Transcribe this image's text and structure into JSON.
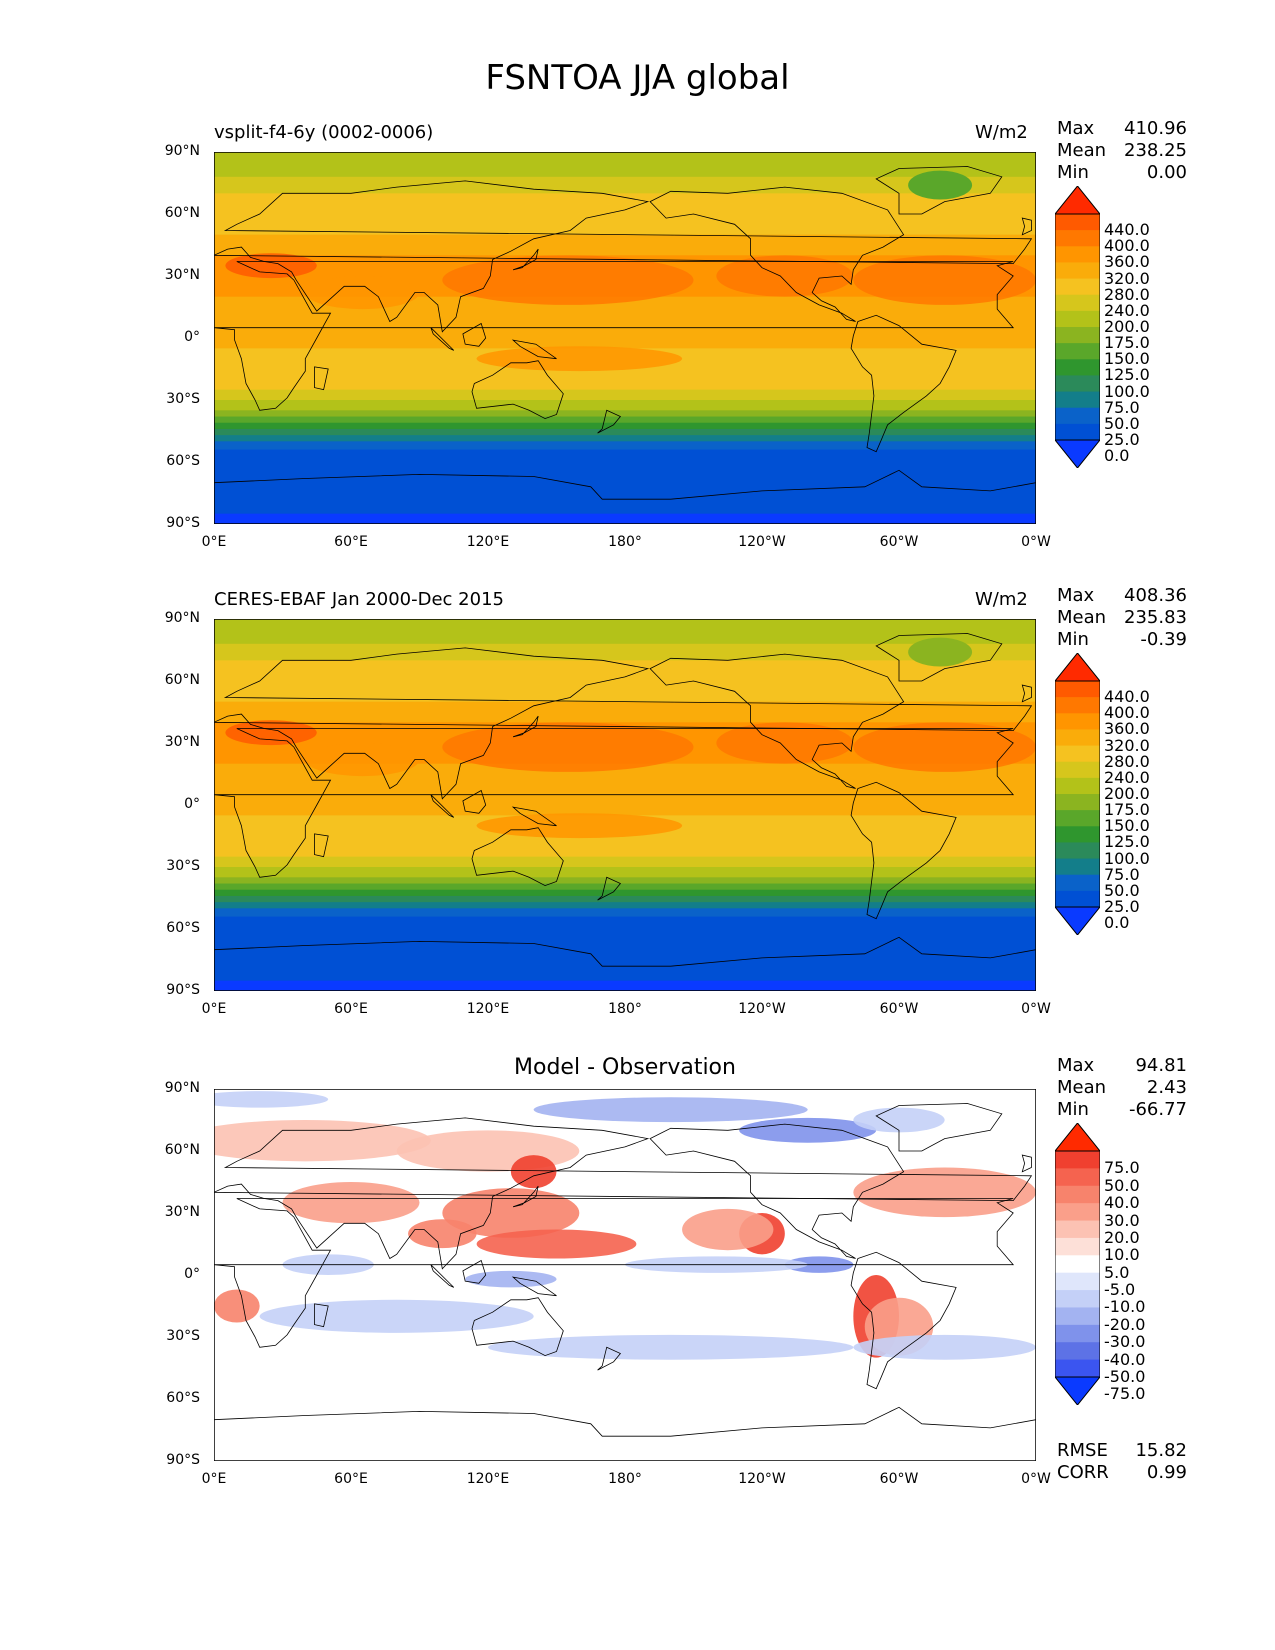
{
  "figure": {
    "title": "FSNTOA JJA global"
  },
  "chart_data": [
    {
      "type": "heatmap",
      "name": "test",
      "left_title": "vsplit-f4-6y (0002-0006)",
      "units": "W/m2",
      "stats": [
        {
          "label": "Max",
          "value": "410.96"
        },
        {
          "label": "Mean",
          "value": "238.25"
        },
        {
          "label": "Min",
          "value": "0.00"
        }
      ],
      "colorbar_levels": [
        "440.0",
        "400.0",
        "360.0",
        "320.0",
        "280.0",
        "240.0",
        "200.0",
        "175.0",
        "150.0",
        "125.0",
        "100.0",
        "75.0",
        "50.0",
        "25.0",
        "0.0"
      ],
      "colorbar_colors": [
        "#ff2a00",
        "#ff5a00",
        "#ff7800",
        "#ff9500",
        "#faac0a",
        "#f5c220",
        "#d6c61c",
        "#b3c219",
        "#8bb420",
        "#5aa72a",
        "#2f962e",
        "#2b8a5a",
        "#137e8a",
        "#0a62c9",
        "#0050d4",
        "#0a3aff"
      ],
      "xticks": [
        "0°E",
        "60°E",
        "120°E",
        "180°",
        "120°W",
        "60°W",
        "0°W"
      ],
      "yticks": [
        "90°N",
        "60°N",
        "30°N",
        "0°",
        "30°S",
        "60°S",
        "90°S"
      ],
      "xlim": [
        0,
        360
      ],
      "ylim": [
        -90,
        90
      ]
    },
    {
      "type": "heatmap",
      "name": "reference",
      "left_title": "CERES-EBAF Jan 2000-Dec 2015",
      "units": "W/m2",
      "stats": [
        {
          "label": "Max",
          "value": "408.36"
        },
        {
          "label": "Mean",
          "value": "235.83"
        },
        {
          "label": "Min",
          "value": "-0.39"
        }
      ],
      "colorbar_levels": [
        "440.0",
        "400.0",
        "360.0",
        "320.0",
        "280.0",
        "240.0",
        "200.0",
        "175.0",
        "150.0",
        "125.0",
        "100.0",
        "75.0",
        "50.0",
        "25.0",
        "0.0"
      ],
      "colorbar_colors": [
        "#ff2a00",
        "#ff5a00",
        "#ff7800",
        "#ff9500",
        "#faac0a",
        "#f5c220",
        "#d6c61c",
        "#b3c219",
        "#8bb420",
        "#5aa72a",
        "#2f962e",
        "#2b8a5a",
        "#137e8a",
        "#0a62c9",
        "#0050d4",
        "#0a3aff"
      ],
      "xticks": [
        "0°E",
        "60°E",
        "120°E",
        "180°",
        "120°W",
        "60°W",
        "0°W"
      ],
      "yticks": [
        "90°N",
        "60°N",
        "30°N",
        "0°",
        "30°S",
        "60°S",
        "90°S"
      ],
      "xlim": [
        0,
        360
      ],
      "ylim": [
        -90,
        90
      ]
    },
    {
      "type": "heatmap",
      "name": "difference",
      "center_title": "Model - Observation",
      "stats": [
        {
          "label": "Max",
          "value": "94.81"
        },
        {
          "label": "Mean",
          "value": "2.43"
        },
        {
          "label": "Min",
          "value": "-66.77"
        }
      ],
      "colorbar_levels": [
        "75.0",
        "50.0",
        "40.0",
        "30.0",
        "20.0",
        "10.0",
        "5.0",
        "-5.0",
        "-10.0",
        "-20.0",
        "-30.0",
        "-40.0",
        "-50.0",
        "-75.0"
      ],
      "colorbar_colors": [
        "#ff2a00",
        "#f0402f",
        "#f5634f",
        "#f7836c",
        "#fa9f8a",
        "#fcc2b3",
        "#fde0d8",
        "#ffffff",
        "#dfe6fb",
        "#c4d0f7",
        "#a3b3f1",
        "#7f92eb",
        "#5d72e6",
        "#3b55f0",
        "#0a3aff"
      ],
      "extra_stats": [
        {
          "label": "RMSE",
          "value": "15.82"
        },
        {
          "label": "CORR",
          "value": "0.99"
        }
      ],
      "xticks": [
        "0°E",
        "60°E",
        "120°E",
        "180°",
        "120°W",
        "60°W",
        "0°W"
      ],
      "yticks": [
        "90°N",
        "60°N",
        "30°N",
        "0°",
        "30°S",
        "60°S",
        "90°S"
      ],
      "xlim": [
        0,
        360
      ],
      "ylim": [
        -90,
        90
      ]
    }
  ]
}
